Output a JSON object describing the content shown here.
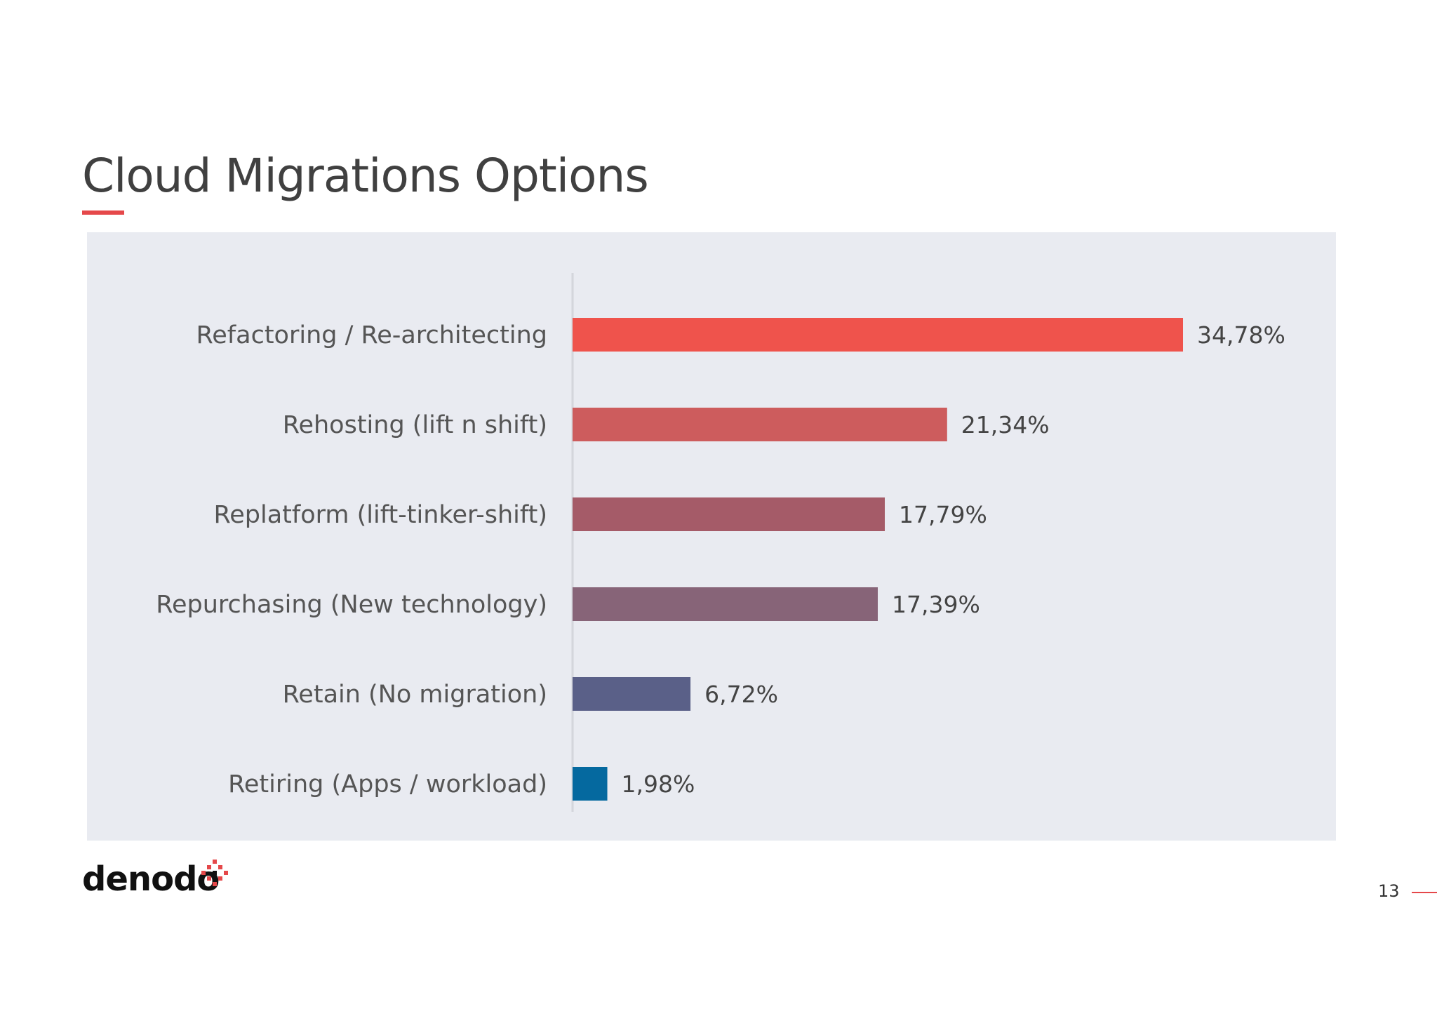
{
  "slide": {
    "title": "Cloud Migrations Options",
    "page_number": "13",
    "logo_text": "denodo",
    "accent_color": "#e5484a"
  },
  "chart_data": {
    "type": "bar",
    "orientation": "horizontal",
    "title": "",
    "xlabel": "",
    "ylabel": "",
    "xlim": [
      0,
      40
    ],
    "grid": false,
    "categories": [
      "Refactoring / Re-architecting",
      "Rehosting (lift n shift)",
      "Replatform (lift-tinker-shift)",
      "Repurchasing (New technology)",
      "Retain (No migration)",
      "Retiring (Apps / workload)"
    ],
    "values": [
      34.78,
      21.34,
      17.79,
      17.39,
      6.72,
      1.98
    ],
    "value_labels": [
      "34,78%",
      "21,34%",
      "17,79%",
      "17,39%",
      "6,72%",
      "1,98%"
    ],
    "colors": [
      "#ef534c",
      "#cd5c5d",
      "#a55b68",
      "#876478",
      "#5a6088",
      "#05699f"
    ]
  }
}
